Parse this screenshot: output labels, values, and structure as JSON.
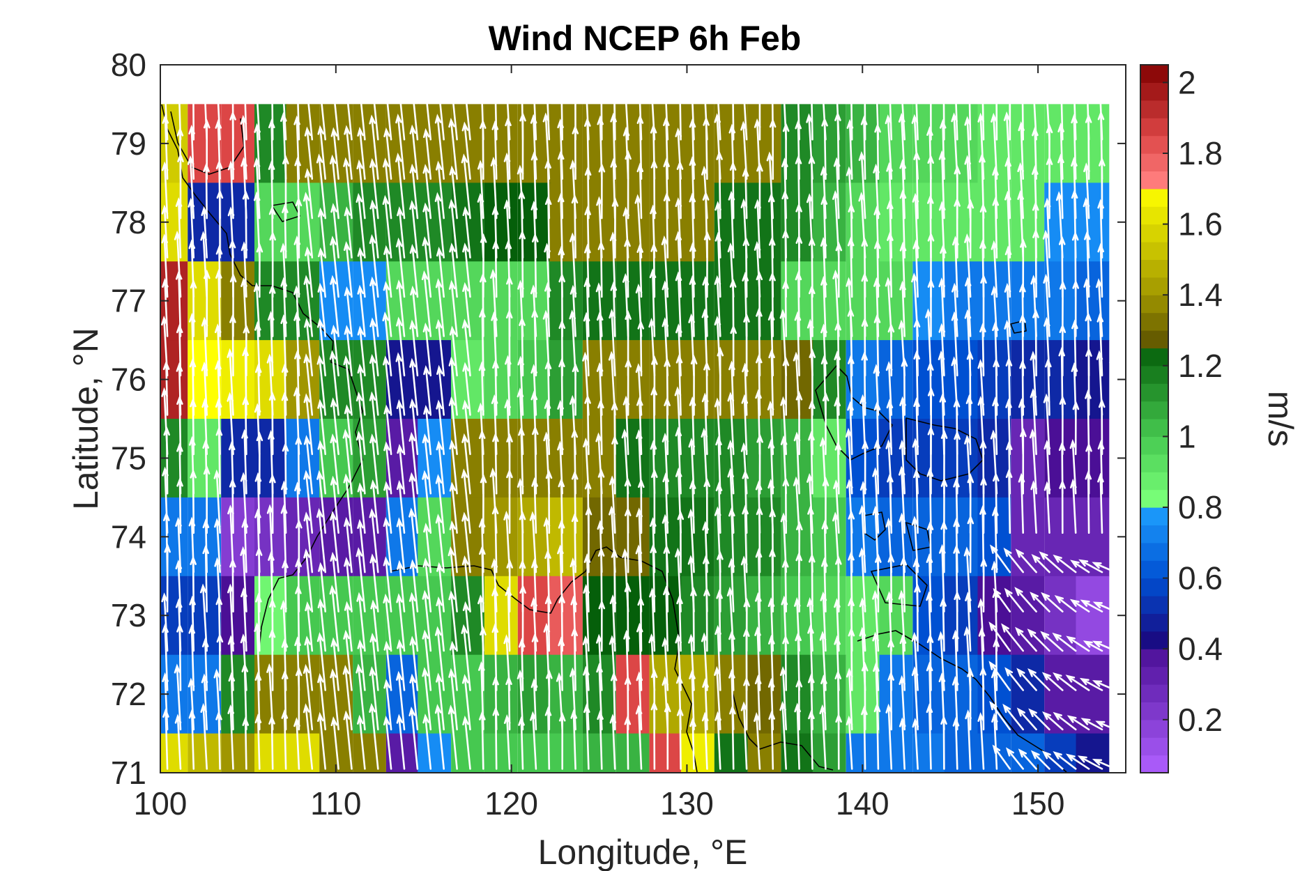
{
  "chart_data": {
    "type": "heatmap",
    "title": "Wind NCEP 6h Feb",
    "xlabel": "Longitude, °E",
    "ylabel": "Latitude, °N",
    "xlim": [
      100,
      155
    ],
    "ylim": [
      71,
      80
    ],
    "x_ticks": [
      "100",
      "110",
      "120",
      "130",
      "140",
      "150"
    ],
    "y_ticks": [
      "71",
      "72",
      "73",
      "74",
      "75",
      "76",
      "77",
      "78",
      "79",
      "80"
    ],
    "grid": false,
    "colorbar": {
      "label": "m/s",
      "range": [
        0.05,
        2.05
      ],
      "ticks": [
        "0.2",
        "0.4",
        "0.6",
        "0.8",
        "1",
        "1.2",
        "1.4",
        "1.6",
        "1.8",
        "2"
      ]
    },
    "cell_width_deg": 1.875,
    "cell_height_deg": 1.0,
    "row_lats": [
      79,
      78,
      77,
      76,
      75,
      74,
      73,
      72,
      71
    ],
    "col_lons": [
      100.6,
      102.5,
      104.4,
      106.3,
      108.1,
      110.0,
      111.9,
      113.8,
      115.6,
      117.5,
      119.4,
      121.3,
      123.1,
      125.0,
      126.9,
      128.8,
      130.6,
      132.5,
      134.4,
      136.3,
      138.1,
      140.0,
      141.9,
      143.8,
      145.6,
      147.5,
      149.4,
      151.3,
      153.1
    ],
    "wind_speed": [
      [
        1.55,
        1.85,
        1.85,
        1.15,
        1.35,
        1.35,
        1.35,
        1.35,
        1.35,
        1.35,
        1.35,
        1.35,
        1.35,
        1.35,
        1.35,
        1.35,
        1.35,
        1.35,
        1.35,
        1.15,
        1.1,
        1.05,
        0.95,
        0.95,
        0.95,
        0.9,
        0.9,
        0.9,
        0.9
      ],
      [
        1.6,
        0.5,
        0.5,
        0.95,
        0.95,
        1.05,
        1.15,
        1.15,
        1.15,
        1.2,
        1.25,
        1.25,
        1.35,
        1.35,
        1.35,
        1.35,
        1.35,
        1.2,
        1.2,
        1.15,
        1.05,
        0.95,
        0.9,
        0.9,
        0.9,
        0.9,
        0.9,
        0.75,
        0.75
      ],
      [
        1.95,
        1.6,
        1.35,
        1.15,
        1.15,
        0.75,
        0.75,
        0.95,
        0.95,
        0.95,
        0.95,
        0.95,
        1.15,
        1.2,
        1.2,
        1.2,
        1.2,
        1.2,
        1.2,
        0.95,
        0.95,
        0.95,
        0.95,
        0.75,
        0.7,
        0.7,
        0.7,
        0.7,
        0.65
      ],
      [
        1.95,
        1.7,
        1.65,
        1.6,
        1.4,
        1.15,
        1.15,
        0.45,
        0.45,
        0.9,
        0.95,
        1.0,
        1.1,
        1.35,
        1.35,
        1.35,
        1.35,
        1.35,
        1.35,
        1.3,
        1.15,
        0.7,
        0.65,
        0.6,
        0.6,
        0.55,
        0.5,
        0.5,
        0.45
      ],
      [
        1.15,
        0.9,
        0.5,
        0.5,
        0.7,
        1.0,
        1.1,
        0.35,
        0.75,
        1.35,
        1.35,
        1.35,
        1.35,
        1.35,
        1.2,
        1.15,
        1.15,
        1.15,
        1.1,
        1.05,
        0.9,
        0.6,
        0.55,
        0.55,
        0.55,
        0.5,
        0.3,
        0.4,
        0.4
      ],
      [
        0.7,
        0.7,
        0.2,
        0.25,
        0.3,
        0.35,
        0.35,
        0.7,
        0.95,
        1.35,
        1.4,
        1.45,
        1.5,
        1.3,
        1.3,
        1.2,
        1.2,
        1.15,
        1.15,
        1.05,
        1.0,
        0.7,
        0.65,
        0.65,
        0.65,
        0.6,
        0.3,
        0.3,
        0.3
      ],
      [
        0.55,
        0.55,
        0.4,
        0.85,
        1.0,
        1.0,
        1.0,
        1.0,
        1.0,
        1.15,
        1.6,
        1.85,
        1.8,
        1.25,
        1.25,
        1.25,
        1.15,
        1.1,
        1.05,
        1.0,
        0.95,
        0.9,
        0.95,
        0.6,
        0.55,
        0.4,
        0.35,
        0.25,
        0.15
      ],
      [
        0.7,
        0.7,
        1.15,
        1.35,
        1.35,
        1.35,
        1.05,
        0.65,
        1.0,
        1.0,
        1.05,
        1.1,
        1.05,
        1.15,
        1.85,
        1.45,
        1.45,
        1.35,
        1.3,
        1.15,
        1.05,
        0.9,
        0.7,
        0.65,
        0.65,
        0.6,
        0.5,
        0.35,
        0.35
      ],
      [
        1.6,
        1.5,
        1.4,
        1.6,
        1.6,
        1.35,
        1.35,
        0.35,
        0.75,
        1.0,
        1.0,
        1.0,
        1.0,
        1.05,
        1.05,
        1.85,
        1.65,
        1.2,
        1.35,
        1.2,
        1.1,
        0.7,
        0.7,
        0.7,
        0.65,
        0.65,
        0.65,
        0.55,
        0.45
      ]
    ]
  }
}
